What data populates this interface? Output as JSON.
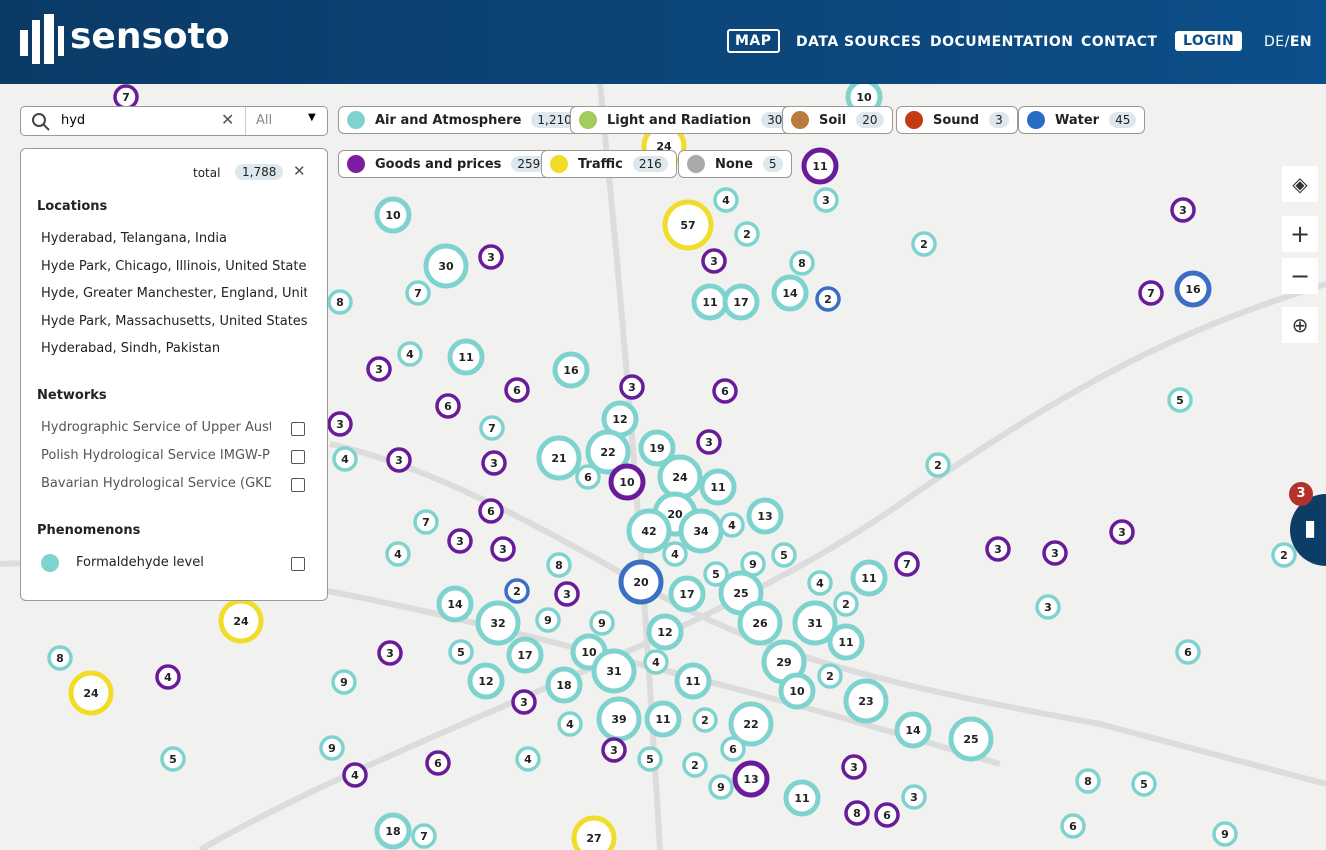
{
  "header": {
    "logo": "sensoto",
    "nav": [
      "MAP",
      "DATA SOURCES",
      "DOCUMENTATION",
      "CONTACT"
    ],
    "login": "LOGIN",
    "lang": {
      "de": "DE",
      "sep": "/",
      "en": "EN"
    }
  },
  "search": {
    "query": "hyd",
    "scope": "All"
  },
  "filters": [
    {
      "label": "Air and Atmosphere",
      "count": "1,210"
    },
    {
      "label": "Light and Radiation",
      "count": "30"
    },
    {
      "label": "Soil",
      "count": "20"
    },
    {
      "label": "Sound",
      "count": "3"
    },
    {
      "label": "Water",
      "count": "45"
    },
    {
      "label": "Goods and prices",
      "count": "259"
    },
    {
      "label": "Traffic",
      "count": "216"
    },
    {
      "label": "None",
      "count": "5"
    }
  ],
  "panel": {
    "total_label": "total",
    "total": "1,788",
    "locations_title": "Locations",
    "locations": [
      "Hyderabad, Telangana, India",
      "Hyde Park, Chicago, Illinois, United States",
      "Hyde, Greater Manchester, England, United …",
      "Hyde Park, Massachusetts, United States",
      "Hyderabad, Sindh, Pakistan"
    ],
    "networks_title": "Networks",
    "networks": [
      "Hydrographic Service of Upper Austri…",
      "Polish Hydrological Service IMGW-PI…",
      "Bavarian Hydrological Service (GKD) -…"
    ],
    "phenomenons_title": "Phenomenons",
    "phenomenons": [
      "Formaldehyde level"
    ]
  },
  "map": {
    "badge": 3,
    "clusters": [
      7,
      10,
      24,
      11,
      10,
      57,
      4,
      3,
      2,
      3,
      2,
      30,
      3,
      3,
      8,
      7,
      8,
      11,
      17,
      14,
      2,
      7,
      16,
      4,
      11,
      3,
      16,
      6,
      3,
      6,
      6,
      5,
      12,
      3,
      7,
      19,
      3,
      4,
      3,
      21,
      22,
      3,
      6,
      10,
      24,
      11,
      2,
      6,
      7,
      20,
      42,
      34,
      4,
      13,
      3,
      3,
      4,
      4,
      8,
      5,
      9,
      7,
      3,
      3,
      3,
      2,
      2,
      3,
      20,
      5,
      4,
      11,
      14,
      32,
      9,
      9,
      17,
      25,
      2,
      3,
      24,
      12,
      26,
      31,
      11,
      5,
      17,
      10,
      3,
      8,
      6,
      4,
      31,
      4,
      11,
      29,
      2,
      9,
      12,
      18,
      24,
      10,
      23,
      3,
      39,
      11,
      2,
      22,
      4,
      14,
      25,
      3,
      6,
      9,
      5,
      4,
      5,
      2,
      13,
      6,
      4,
      3,
      8,
      5,
      9,
      11,
      3,
      8,
      6,
      18,
      7,
      27,
      6,
      9
    ]
  }
}
